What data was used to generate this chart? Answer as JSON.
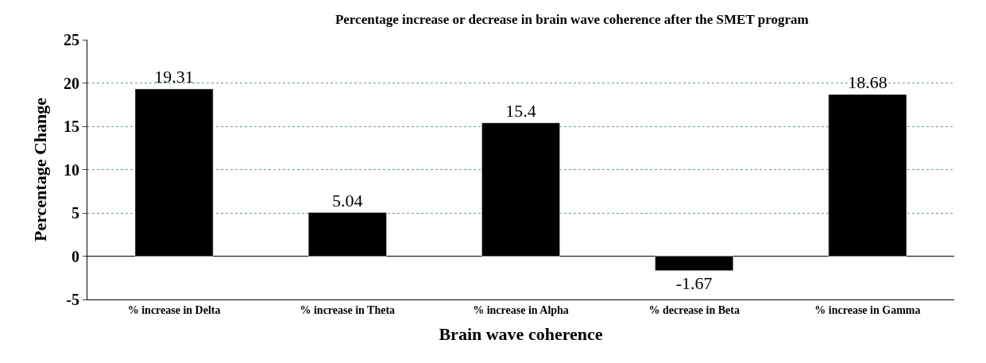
{
  "chart_data": {
    "type": "bar",
    "title": "Percentage increase or decrease in brain wave coherence after the SMET program",
    "xlabel": "Brain wave coherence",
    "ylabel": "Percentage Change",
    "categories": [
      "% increase in Delta",
      "% increase in Theta",
      "% increase in Alpha",
      "% decrease in Beta",
      "% increase in Gamma"
    ],
    "values": [
      19.31,
      5.04,
      15.4,
      -1.67,
      18.68
    ],
    "value_labels": [
      "19.31",
      "5.04",
      "15.4",
      "-1.67",
      "18.68"
    ],
    "color": "#000000",
    "ylim": [
      -5,
      25
    ],
    "yticks": [
      -5,
      0,
      5,
      10,
      15,
      20,
      25
    ],
    "grid": "y",
    "legend": false
  }
}
